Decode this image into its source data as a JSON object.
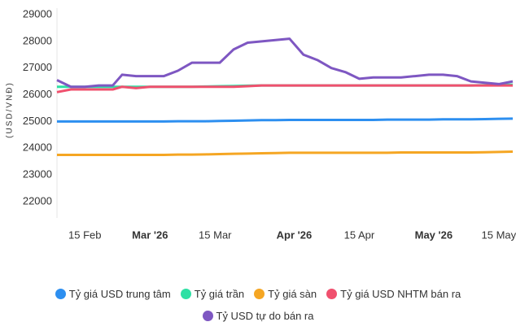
{
  "chart_data": {
    "type": "line",
    "y_label": "(USD/VNĐ)",
    "x": [
      "2026-02-09",
      "2026-02-12",
      "2026-02-15",
      "2026-02-18",
      "2026-02-21",
      "2026-02-23",
      "2026-02-26",
      "2026-03-01",
      "2026-03-04",
      "2026-03-07",
      "2026-03-10",
      "2026-03-13",
      "2026-03-16",
      "2026-03-19",
      "2026-03-22",
      "2026-03-25",
      "2026-03-28",
      "2026-03-31",
      "2026-04-03",
      "2026-04-06",
      "2026-04-09",
      "2026-04-12",
      "2026-04-15",
      "2026-04-18",
      "2026-04-21",
      "2026-04-24",
      "2026-04-27",
      "2026-04-30",
      "2026-05-03",
      "2026-05-06",
      "2026-05-09",
      "2026-05-12",
      "2026-05-15",
      "2026-05-18"
    ],
    "xlim": [
      "2026-02-09",
      "2026-05-18"
    ],
    "xticks": [
      {
        "value": "2026-02-15",
        "label": "15 Feb"
      },
      {
        "value": "2026-03-01",
        "label": "Mar '26"
      },
      {
        "value": "2026-03-15",
        "label": "15 Mar"
      },
      {
        "value": "2026-04-01",
        "label": "Apr '26"
      },
      {
        "value": "2026-04-15",
        "label": "15 Apr"
      },
      {
        "value": "2026-05-01",
        "label": "May '26"
      },
      {
        "value": "2026-05-15",
        "label": "15 May"
      }
    ],
    "ylim": [
      22000,
      29000
    ],
    "yticks": [
      22000,
      23000,
      24000,
      25000,
      26000,
      27000,
      28000,
      29000
    ],
    "grid": false,
    "legend": "bottom",
    "series": [
      {
        "name": "Tỷ giá USD trung tâm",
        "color": "#2d8ff0",
        "values": [
          25000,
          25000,
          25000,
          25000,
          25000,
          25000,
          25000,
          25000,
          25000,
          25010,
          25010,
          25010,
          25020,
          25030,
          25040,
          25050,
          25050,
          25060,
          25060,
          25060,
          25060,
          25060,
          25060,
          25060,
          25070,
          25070,
          25070,
          25070,
          25080,
          25080,
          25080,
          25090,
          25100,
          25110
        ]
      },
      {
        "name": "Tỷ giá trần",
        "color": "#2ee0a4",
        "values": [
          26300,
          26300,
          26300,
          26300,
          26300,
          26300,
          26300,
          26300,
          26300,
          26300,
          26300,
          26310,
          26320,
          26330,
          26340,
          26350,
          26350,
          26350,
          26350,
          26350,
          26350,
          26350,
          26350,
          26350,
          26350,
          26350,
          26350,
          26350,
          26350,
          26350,
          26350,
          26360,
          26370,
          26380
        ]
      },
      {
        "name": "Tỷ giá sàn",
        "color": "#f5a623",
        "values": [
          23750,
          23750,
          23750,
          23750,
          23750,
          23750,
          23750,
          23750,
          23750,
          23760,
          23760,
          23770,
          23780,
          23790,
          23800,
          23810,
          23820,
          23830,
          23830,
          23830,
          23830,
          23830,
          23830,
          23830,
          23830,
          23840,
          23840,
          23840,
          23840,
          23840,
          23840,
          23850,
          23860,
          23870
        ]
      },
      {
        "name": "Tỷ giá USD NHTM bán ra",
        "color": "#f0506e",
        "values": [
          26100,
          26200,
          26200,
          26200,
          26200,
          26300,
          26250,
          26300,
          26300,
          26300,
          26300,
          26300,
          26300,
          26300,
          26320,
          26350,
          26350,
          26350,
          26350,
          26350,
          26350,
          26350,
          26350,
          26350,
          26350,
          26350,
          26350,
          26350,
          26350,
          26350,
          26350,
          26350,
          26350,
          26350
        ]
      },
      {
        "name": "Tỷ USD tự do bán ra",
        "color": "#7e57c2",
        "values": [
          26550,
          26300,
          26300,
          26350,
          26350,
          26750,
          26700,
          26700,
          26700,
          26900,
          27200,
          27200,
          27200,
          27700,
          27950,
          28000,
          28050,
          28100,
          27500,
          27300,
          27000,
          26850,
          26600,
          26650,
          26650,
          26650,
          26700,
          26750,
          26750,
          26700,
          26500,
          26450,
          26400,
          26500
        ]
      }
    ]
  }
}
